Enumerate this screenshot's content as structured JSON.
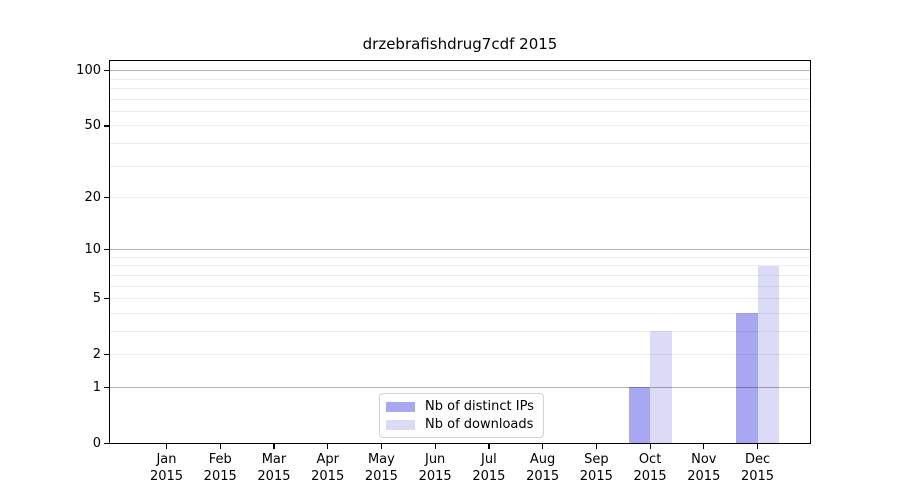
{
  "chart_data": {
    "type": "bar",
    "title": "drzebrafishdrug7cdf 2015",
    "categories": [
      "Jan",
      "Feb",
      "Mar",
      "Apr",
      "May",
      "Jun",
      "Jul",
      "Aug",
      "Sep",
      "Oct",
      "Nov",
      "Dec"
    ],
    "category_year": "2015",
    "series": [
      {
        "name": "Nb of distinct IPs",
        "color": "#a8a8f2",
        "values": [
          0,
          0,
          0,
          0,
          0,
          0,
          0,
          0,
          0,
          1,
          0,
          4
        ]
      },
      {
        "name": "Nb of downloads",
        "color": "#dbdbf8",
        "values": [
          0,
          0,
          0,
          0,
          0,
          0,
          0,
          0,
          0,
          3,
          0,
          8
        ]
      }
    ],
    "y_axis": {
      "scale": "log1p",
      "ticks": [
        0,
        1,
        2,
        5,
        10,
        20,
        50,
        100
      ],
      "gridlines_major": [
        1,
        10,
        100
      ],
      "gridlines_minor": [
        2,
        3,
        4,
        5,
        6,
        7,
        8,
        9,
        20,
        30,
        40,
        50,
        60,
        70,
        80,
        90
      ],
      "range": [
        0,
        113
      ]
    },
    "grid": true,
    "legend_position": "bottom-center",
    "colors": {
      "grid_major": "#0000004d",
      "grid_minor": "#00000012",
      "spine": "#000000",
      "legend_border": "#d2d2d2",
      "background": "#ffffff"
    }
  }
}
